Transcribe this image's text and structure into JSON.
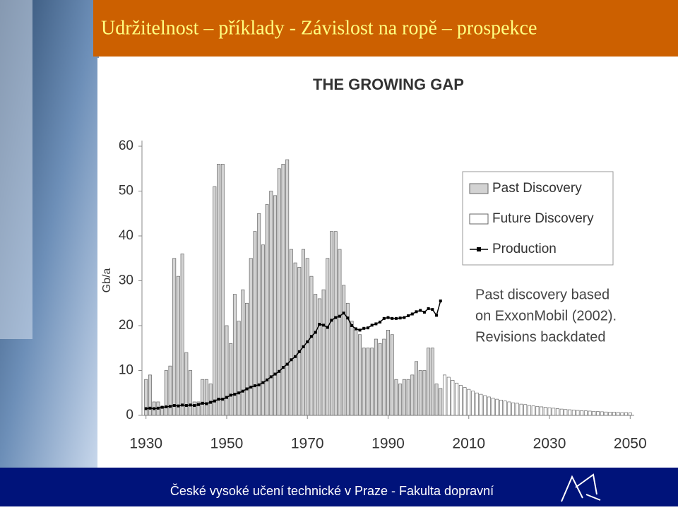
{
  "header": {
    "title": "Udržitelnost – příklady - Závislost na ropě – prospekce"
  },
  "footer": {
    "text": "České vysoké učení technické v Praze - Fakulta dopravní"
  },
  "chart_data": {
    "type": "bar",
    "title": "THE GROWING GAP",
    "y_label": "Gb/a",
    "annotation": [
      "Past discovery based",
      "on ExxonMobil (2002).",
      "Revisions backdated"
    ],
    "legend": "upper right",
    "grid": false,
    "xlim": [
      1929,
      2051
    ],
    "xticks": [
      1930,
      1950,
      1970,
      1990,
      2010,
      2030,
      2050
    ],
    "ylim": [
      0,
      60
    ],
    "yticks": [
      0,
      10,
      20,
      30,
      40,
      50,
      60
    ],
    "x": [
      1930,
      1931,
      1932,
      1933,
      1934,
      1935,
      1936,
      1937,
      1938,
      1939,
      1940,
      1941,
      1942,
      1943,
      1944,
      1945,
      1946,
      1947,
      1948,
      1949,
      1950,
      1951,
      1952,
      1953,
      1954,
      1955,
      1956,
      1957,
      1958,
      1959,
      1960,
      1961,
      1962,
      1963,
      1964,
      1965,
      1966,
      1967,
      1968,
      1969,
      1970,
      1971,
      1972,
      1973,
      1974,
      1975,
      1976,
      1977,
      1978,
      1979,
      1980,
      1981,
      1982,
      1983,
      1984,
      1985,
      1986,
      1987,
      1988,
      1989,
      1990,
      1991,
      1992,
      1993,
      1994,
      1995,
      1996,
      1997,
      1998,
      1999,
      2000,
      2001,
      2002,
      2003,
      2004,
      2005,
      2006,
      2007,
      2008,
      2009,
      2010,
      2011,
      2012,
      2013,
      2014,
      2015,
      2016,
      2017,
      2018,
      2019,
      2020,
      2021,
      2022,
      2023,
      2024,
      2025,
      2026,
      2027,
      2028,
      2029,
      2030,
      2031,
      2032,
      2033,
      2034,
      2035,
      2036,
      2037,
      2038,
      2039,
      2040,
      2041,
      2042,
      2043,
      2044,
      2045,
      2046,
      2047,
      2048,
      2049,
      2050
    ],
    "series": [
      {
        "name": "Past Discovery",
        "color": "#d3d3d3",
        "values": [
          8,
          9,
          3,
          3,
          2,
          10,
          11,
          35,
          31,
          36,
          14,
          10,
          3,
          3,
          8,
          8,
          7,
          51,
          56,
          56,
          20,
          16,
          27,
          21,
          28,
          25,
          35,
          41,
          45,
          38,
          47,
          50,
          49,
          55,
          56,
          57,
          37,
          34,
          33,
          37,
          35,
          31,
          27,
          26,
          28,
          35,
          41,
          41,
          37,
          29,
          25,
          21,
          19,
          18,
          15,
          15,
          15,
          17,
          16,
          17,
          19,
          18,
          8,
          7,
          8,
          8,
          9,
          12,
          10,
          10,
          15,
          15,
          7,
          6,
          null,
          null,
          null,
          null,
          null,
          null,
          null,
          null,
          null,
          null,
          null,
          null,
          null,
          null,
          null,
          null,
          null,
          null,
          null,
          null,
          null,
          null,
          null,
          null,
          null,
          null,
          null,
          null,
          null,
          null,
          null,
          null,
          null,
          null,
          null,
          null,
          null,
          null,
          null,
          null,
          null,
          null,
          null,
          null,
          null,
          null,
          null
        ]
      },
      {
        "name": "Future Discovery",
        "color": "#ffffff",
        "values": [
          null,
          null,
          null,
          null,
          null,
          null,
          null,
          null,
          null,
          null,
          null,
          null,
          null,
          null,
          null,
          null,
          null,
          null,
          null,
          null,
          null,
          null,
          null,
          null,
          null,
          null,
          null,
          null,
          null,
          null,
          null,
          null,
          null,
          null,
          null,
          null,
          null,
          null,
          null,
          null,
          null,
          null,
          null,
          null,
          null,
          null,
          null,
          null,
          null,
          null,
          null,
          null,
          null,
          null,
          null,
          null,
          null,
          null,
          null,
          null,
          null,
          null,
          null,
          null,
          null,
          null,
          null,
          null,
          null,
          null,
          null,
          null,
          null,
          null,
          9,
          8.5,
          7.8,
          7.2,
          6.7,
          6.2,
          5.8,
          5.4,
          5,
          4.7,
          4.4,
          4.1,
          3.8,
          3.6,
          3.4,
          3.2,
          3,
          2.8,
          2.7,
          2.5,
          2.4,
          2.2,
          2.1,
          2,
          1.9,
          1.8,
          1.7,
          1.6,
          1.5,
          1.4,
          1.3,
          1.25,
          1.2,
          1.1,
          1.05,
          1,
          0.95,
          0.9,
          0.85,
          0.8,
          0.75,
          0.7,
          0.7,
          0.65,
          0.6,
          0.6,
          0.55
        ]
      },
      {
        "name": "Production",
        "type": "line",
        "color": "#000000",
        "values": [
          1.5,
          1.6,
          1.5,
          1.6,
          1.8,
          1.9,
          2,
          2.2,
          2.1,
          2.3,
          2.2,
          2.3,
          2.2,
          2.4,
          2.7,
          2.6,
          2.9,
          3.2,
          3.6,
          3.6,
          4,
          4.5,
          4.7,
          5,
          5.4,
          5.9,
          6.3,
          6.6,
          6.8,
          7.3,
          7.9,
          8.6,
          9.2,
          9.8,
          10.7,
          11.4,
          12.4,
          13.1,
          14.2,
          15.3,
          16.4,
          17.6,
          18.5,
          20.3,
          20.1,
          19.6,
          21.2,
          21.8,
          22.1,
          22.8,
          21.7,
          20,
          19.3,
          19,
          19.4,
          19.5,
          20.1,
          20.4,
          20.8,
          21.6,
          21.8,
          21.6,
          21.6,
          21.7,
          21.8,
          22.2,
          22.6,
          23.1,
          23.4,
          23,
          23.8,
          23.6,
          22.3,
          25.5,
          null,
          null,
          null,
          null,
          null,
          null,
          null,
          null,
          null,
          null,
          null,
          null,
          null,
          null,
          null,
          null,
          null,
          null,
          null,
          null,
          null,
          null,
          null,
          null,
          null,
          null,
          null,
          null,
          null,
          null,
          null,
          null,
          null,
          null,
          null,
          null,
          null,
          null,
          null,
          null,
          null,
          null,
          null,
          null,
          null,
          null,
          null
        ]
      }
    ]
  }
}
